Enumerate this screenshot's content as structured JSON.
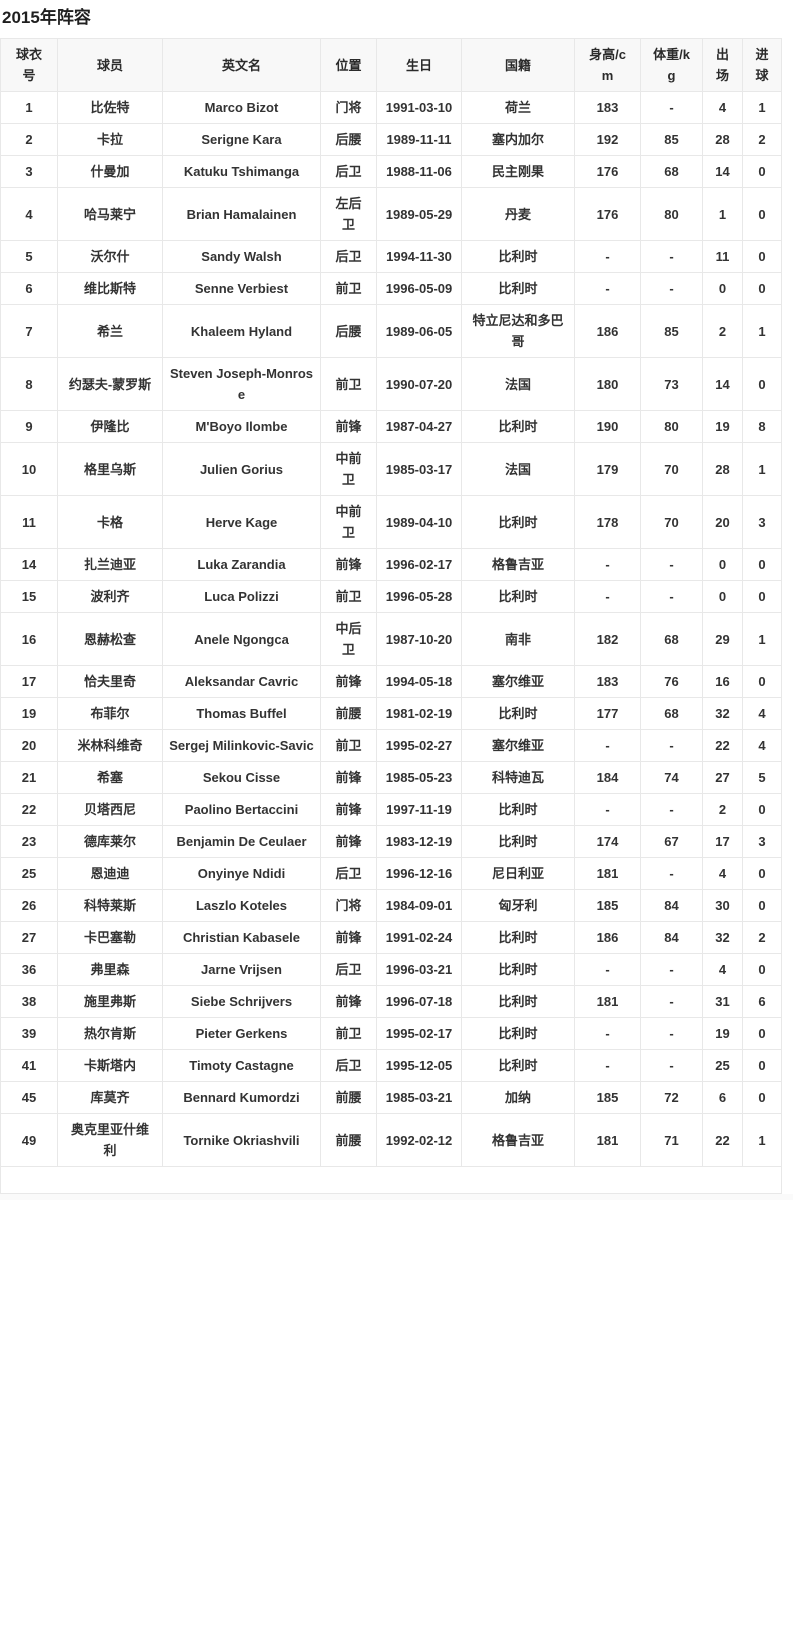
{
  "page": {
    "title": "2015年阵容"
  },
  "table": {
    "headers": [
      "球衣号",
      "球员",
      "英文名",
      "位置",
      "生日",
      "国籍",
      "身高/cm",
      "体重/kg",
      "出场",
      "进球"
    ],
    "columns": [
      {
        "key": "jersey-number",
        "label": "球衣号"
      },
      {
        "key": "player",
        "label": "球员"
      },
      {
        "key": "name-en",
        "label": "英文名"
      },
      {
        "key": "position",
        "label": "位置"
      },
      {
        "key": "birthday",
        "label": "生日"
      },
      {
        "key": "nationality",
        "label": "国籍"
      },
      {
        "key": "height-cm",
        "label": "身高/cm"
      },
      {
        "key": "weight-kg",
        "label": "体重/kg"
      },
      {
        "key": "appearances",
        "label": "出场"
      },
      {
        "key": "goals",
        "label": "进球"
      }
    ],
    "rows": [
      [
        "1",
        "比佐特",
        "Marco Bizot",
        "门将",
        "1991-03-10",
        "荷兰",
        "183",
        "-",
        "4",
        "1"
      ],
      [
        "2",
        "卡拉",
        "Serigne Kara",
        "后腰",
        "1989-11-11",
        "塞内加尔",
        "192",
        "85",
        "28",
        "2"
      ],
      [
        "3",
        "什曼加",
        "Katuku Tshimanga",
        "后卫",
        "1988-11-06",
        "民主刚果",
        "176",
        "68",
        "14",
        "0"
      ],
      [
        "4",
        "哈马莱宁",
        "Brian Hamalainen",
        "左后卫",
        "1989-05-29",
        "丹麦",
        "176",
        "80",
        "1",
        "0"
      ],
      [
        "5",
        "沃尔什",
        "Sandy Walsh",
        "后卫",
        "1994-11-30",
        "比利时",
        "-",
        "-",
        "11",
        "0"
      ],
      [
        "6",
        "维比斯特",
        "Senne Verbiest",
        "前卫",
        "1996-05-09",
        "比利时",
        "-",
        "-",
        "0",
        "0"
      ],
      [
        "7",
        "希兰",
        "Khaleem Hyland",
        "后腰",
        "1989-06-05",
        "特立尼达和多巴哥",
        "186",
        "85",
        "2",
        "1"
      ],
      [
        "8",
        "约瑟夫-蒙罗斯",
        "Steven Joseph-Monrose",
        "前卫",
        "1990-07-20",
        "法国",
        "180",
        "73",
        "14",
        "0"
      ],
      [
        "9",
        "伊隆比",
        "M'Boyo Ilombe",
        "前锋",
        "1987-04-27",
        "比利时",
        "190",
        "80",
        "19",
        "8"
      ],
      [
        "10",
        "格里乌斯",
        "Julien Gorius",
        "中前卫",
        "1985-03-17",
        "法国",
        "179",
        "70",
        "28",
        "1"
      ],
      [
        "11",
        "卡格",
        "Herve Kage",
        "中前卫",
        "1989-04-10",
        "比利时",
        "178",
        "70",
        "20",
        "3"
      ],
      [
        "14",
        "扎兰迪亚",
        "Luka Zarandia",
        "前锋",
        "1996-02-17",
        "格鲁吉亚",
        "-",
        "-",
        "0",
        "0"
      ],
      [
        "15",
        "波利齐",
        "Luca Polizzi",
        "前卫",
        "1996-05-28",
        "比利时",
        "-",
        "-",
        "0",
        "0"
      ],
      [
        "16",
        "恩赫松查",
        "Anele Ngongca",
        "中后卫",
        "1987-10-20",
        "南非",
        "182",
        "68",
        "29",
        "1"
      ],
      [
        "17",
        "恰夫里奇",
        "Aleksandar Cavric",
        "前锋",
        "1994-05-18",
        "塞尔维亚",
        "183",
        "76",
        "16",
        "0"
      ],
      [
        "19",
        "布菲尔",
        "Thomas Buffel",
        "前腰",
        "1981-02-19",
        "比利时",
        "177",
        "68",
        "32",
        "4"
      ],
      [
        "20",
        "米林科维奇",
        "Sergej Milinkovic-Savic",
        "前卫",
        "1995-02-27",
        "塞尔维亚",
        "-",
        "-",
        "22",
        "4"
      ],
      [
        "21",
        "希塞",
        "Sekou Cisse",
        "前锋",
        "1985-05-23",
        "科特迪瓦",
        "184",
        "74",
        "27",
        "5"
      ],
      [
        "22",
        "贝塔西尼",
        "Paolino Bertaccini",
        "前锋",
        "1997-11-19",
        "比利时",
        "-",
        "-",
        "2",
        "0"
      ],
      [
        "23",
        "德库莱尔",
        "Benjamin De Ceulaer",
        "前锋",
        "1983-12-19",
        "比利时",
        "174",
        "67",
        "17",
        "3"
      ],
      [
        "25",
        "恩迪迪",
        "Onyinye Ndidi",
        "后卫",
        "1996-12-16",
        "尼日利亚",
        "181",
        "-",
        "4",
        "0"
      ],
      [
        "26",
        "科特莱斯",
        "Laszlo Koteles",
        "门将",
        "1984-09-01",
        "匈牙利",
        "185",
        "84",
        "30",
        "0"
      ],
      [
        "27",
        "卡巴塞勒",
        "Christian Kabasele",
        "前锋",
        "1991-02-24",
        "比利时",
        "186",
        "84",
        "32",
        "2"
      ],
      [
        "36",
        "弗里森",
        "Jarne Vrijsen",
        "后卫",
        "1996-03-21",
        "比利时",
        "-",
        "-",
        "4",
        "0"
      ],
      [
        "38",
        "施里弗斯",
        "Siebe Schrijvers",
        "前锋",
        "1996-07-18",
        "比利时",
        "181",
        "-",
        "31",
        "6"
      ],
      [
        "39",
        "热尔肯斯",
        "Pieter Gerkens",
        "前卫",
        "1995-02-17",
        "比利时",
        "-",
        "-",
        "19",
        "0"
      ],
      [
        "41",
        "卡斯塔内",
        "Timoty Castagne",
        "后卫",
        "1995-12-05",
        "比利时",
        "-",
        "-",
        "25",
        "0"
      ],
      [
        "45",
        "库莫齐",
        "Bennard Kumordzi",
        "前腰",
        "1985-03-21",
        "加纳",
        "185",
        "72",
        "6",
        "0"
      ],
      [
        "49",
        "奥克里亚什维利",
        "Tornike Okriashvili",
        "前腰",
        "1992-02-12",
        "格鲁吉亚",
        "181",
        "71",
        "22",
        "1"
      ]
    ]
  },
  "colors": {
    "header_background": "#f8f8f8",
    "border": "#e8e8e8",
    "text": "#333333",
    "title_text": "#1f1f1f",
    "row_background": "#ffffff"
  }
}
